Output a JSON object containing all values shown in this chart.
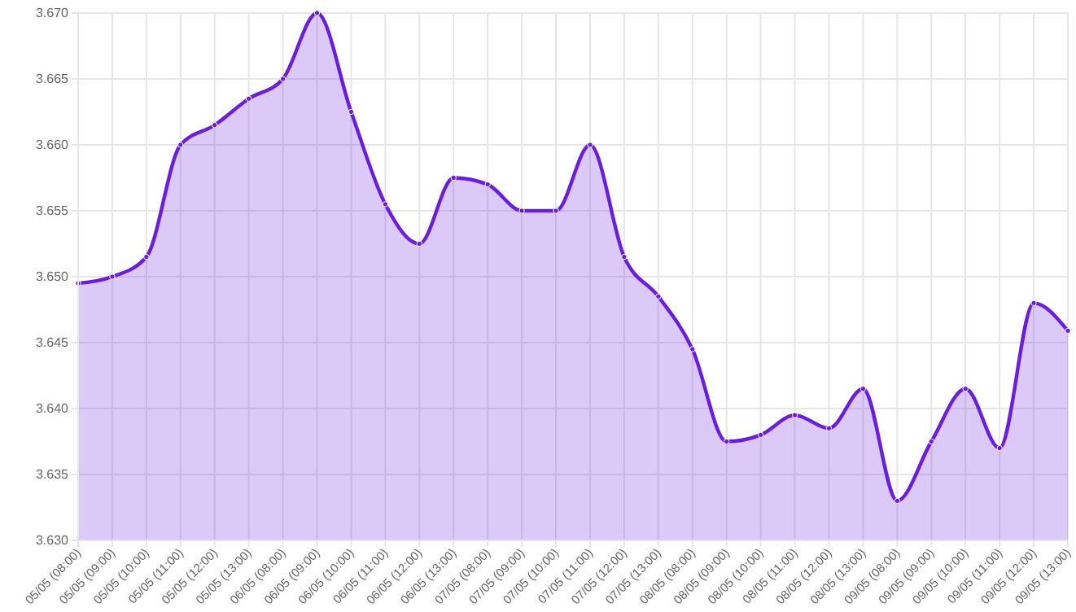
{
  "chart_data": {
    "type": "area",
    "categories": [
      "05/05 (08:00)",
      "05/05 (09:00)",
      "05/05 (10:00)",
      "05/05 (11:00)",
      "05/05 (12:00)",
      "05/05 (13:00)",
      "06/05 (08:00)",
      "06/05 (09:00)",
      "06/05 (10:00)",
      "06/05 (11:00)",
      "06/05 (12:00)",
      "06/05 (13:00)",
      "07/05 (08:00)",
      "07/05 (09:00)",
      "07/05 (10:00)",
      "07/05 (11:00)",
      "07/05 (12:00)",
      "07/05 (13:00)",
      "08/05 (08:00)",
      "08/05 (09:00)",
      "08/05 (10:00)",
      "08/05 (11:00)",
      "08/05 (12:00)",
      "08/05 (13:00)",
      "09/05 (08:00)",
      "09/05 (09:00)",
      "09/05 (10:00)",
      "09/05 (11:00)",
      "09/05 (12:00)",
      "09/05 (13:00)"
    ],
    "series": [
      {
        "color": "#6a1de0",
        "values": [
          3.6495,
          3.65,
          3.6515,
          3.66,
          3.6615,
          3.6635,
          3.665,
          3.67,
          3.6625,
          3.6555,
          3.6525,
          3.6575,
          3.657,
          3.655,
          3.655,
          3.66,
          3.6515,
          3.6485,
          3.6445,
          3.6375,
          3.638,
          3.6395,
          3.6385,
          3.6415,
          3.633,
          3.6375,
          3.6415,
          3.637,
          3.648,
          3.6459
        ]
      }
    ],
    "ylim": [
      3.63,
      3.67
    ],
    "yticks": [
      {
        "value": 3.63,
        "label": "3.630"
      },
      {
        "value": 3.635,
        "label": "3.635"
      },
      {
        "value": 3.64,
        "label": "3.640"
      },
      {
        "value": 3.645,
        "label": "3.645"
      },
      {
        "value": 3.65,
        "label": "3.650"
      },
      {
        "value": 3.655,
        "label": "3.655"
      },
      {
        "value": 3.66,
        "label": "3.660"
      },
      {
        "value": 3.665,
        "label": "3.665"
      },
      {
        "value": 3.67,
        "label": "3.670"
      }
    ],
    "grid": true,
    "marker": "circle",
    "line_style": "solid"
  }
}
